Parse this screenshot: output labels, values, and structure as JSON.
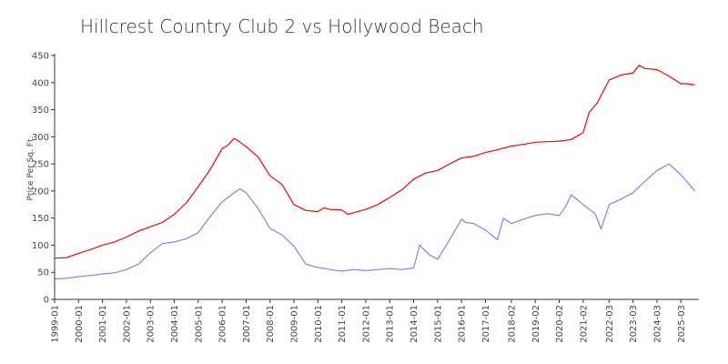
{
  "chart_data": {
    "type": "line",
    "title": "Hillcrest Country Club 2 vs Hollywood Beach",
    "xlabel": "",
    "ylabel": "Price Per Sq. Ft.",
    "ylim": [
      0,
      450
    ],
    "yticks": [
      0,
      50,
      100,
      150,
      200,
      250,
      300,
      350,
      400,
      450
    ],
    "xlim": [
      "1999-01",
      "2025-12"
    ],
    "xticks": [
      "1999-01",
      "2000-01",
      "2001-01",
      "2002-01",
      "2003-01",
      "2004-01",
      "2005-01",
      "2006-01",
      "2007-01",
      "2008-01",
      "2009-01",
      "2010-01",
      "2011-01",
      "2012-01",
      "2013-01",
      "2014-01",
      "2015-01",
      "2016-01",
      "2017-01",
      "2018-02",
      "2019-02",
      "2020-02",
      "2021-02",
      "2022-03",
      "2023-03",
      "2024-03",
      "2025-03"
    ],
    "grid": false,
    "legend": "none",
    "series": [
      {
        "color": "#ff0000",
        "points": [
          [
            "1999-01",
            76
          ],
          [
            "1999-07",
            77
          ],
          [
            "2000-01",
            85
          ],
          [
            "2000-07",
            92
          ],
          [
            "2001-01",
            100
          ],
          [
            "2001-07",
            106
          ],
          [
            "2002-01",
            115
          ],
          [
            "2002-07",
            126
          ],
          [
            "2003-01",
            134
          ],
          [
            "2003-07",
            142
          ],
          [
            "2004-01",
            157
          ],
          [
            "2004-07",
            178
          ],
          [
            "2005-01",
            208
          ],
          [
            "2005-07",
            240
          ],
          [
            "2006-01",
            278
          ],
          [
            "2006-04",
            285
          ],
          [
            "2006-07",
            297
          ],
          [
            "2006-10",
            290
          ],
          [
            "2007-01",
            282
          ],
          [
            "2007-07",
            263
          ],
          [
            "2008-01",
            228
          ],
          [
            "2008-07",
            212
          ],
          [
            "2009-01",
            175
          ],
          [
            "2009-07",
            164
          ],
          [
            "2010-01",
            162
          ],
          [
            "2010-04",
            169
          ],
          [
            "2010-07",
            166
          ],
          [
            "2011-01",
            165
          ],
          [
            "2011-04",
            157
          ],
          [
            "2011-07",
            160
          ],
          [
            "2012-01",
            166
          ],
          [
            "2012-07",
            175
          ],
          [
            "2013-01",
            188
          ],
          [
            "2013-07",
            202
          ],
          [
            "2014-01",
            222
          ],
          [
            "2014-07",
            233
          ],
          [
            "2015-01",
            238
          ],
          [
            "2015-07",
            250
          ],
          [
            "2016-01",
            261
          ],
          [
            "2016-07",
            264
          ],
          [
            "2017-01",
            271
          ],
          [
            "2017-07",
            276
          ],
          [
            "2018-02",
            283
          ],
          [
            "2018-08",
            286
          ],
          [
            "2019-02",
            290
          ],
          [
            "2019-08",
            291
          ],
          [
            "2020-02",
            292
          ],
          [
            "2020-08",
            295
          ],
          [
            "2021-02",
            308
          ],
          [
            "2021-05",
            345
          ],
          [
            "2021-09",
            362
          ],
          [
            "2022-03",
            405
          ],
          [
            "2022-09",
            414
          ],
          [
            "2023-03",
            418
          ],
          [
            "2023-06",
            432
          ],
          [
            "2023-09",
            426
          ],
          [
            "2024-03",
            424
          ],
          [
            "2024-09",
            412
          ],
          [
            "2025-03",
            398
          ],
          [
            "2025-06",
            398
          ],
          [
            "2025-10",
            396
          ]
        ]
      },
      {
        "color": "#8080ff",
        "points": [
          [
            "1999-01",
            38
          ],
          [
            "1999-07",
            39
          ],
          [
            "2000-01",
            42
          ],
          [
            "2000-07",
            44
          ],
          [
            "2001-01",
            47
          ],
          [
            "2001-07",
            49
          ],
          [
            "2002-01",
            55
          ],
          [
            "2002-07",
            65
          ],
          [
            "2003-01",
            86
          ],
          [
            "2003-07",
            103
          ],
          [
            "2004-01",
            106
          ],
          [
            "2004-07",
            112
          ],
          [
            "2005-01",
            123
          ],
          [
            "2005-07",
            153
          ],
          [
            "2006-01",
            180
          ],
          [
            "2006-07",
            197
          ],
          [
            "2006-10",
            204
          ],
          [
            "2007-01",
            197
          ],
          [
            "2007-07",
            168
          ],
          [
            "2008-01",
            131
          ],
          [
            "2008-07",
            119
          ],
          [
            "2009-01",
            98
          ],
          [
            "2009-07",
            65
          ],
          [
            "2010-01",
            59
          ],
          [
            "2010-07",
            55
          ],
          [
            "2011-01",
            52
          ],
          [
            "2011-07",
            55
          ],
          [
            "2012-01",
            53
          ],
          [
            "2012-07",
            55
          ],
          [
            "2013-01",
            57
          ],
          [
            "2013-07",
            55
          ],
          [
            "2014-01",
            58
          ],
          [
            "2014-04",
            100
          ],
          [
            "2014-09",
            82
          ],
          [
            "2015-01",
            74
          ],
          [
            "2015-07",
            110
          ],
          [
            "2016-01",
            148
          ],
          [
            "2016-03",
            142
          ],
          [
            "2016-07",
            140
          ],
          [
            "2017-01",
            128
          ],
          [
            "2017-07",
            110
          ],
          [
            "2017-10",
            150
          ],
          [
            "2018-02",
            140
          ],
          [
            "2018-08",
            148
          ],
          [
            "2019-02",
            155
          ],
          [
            "2019-08",
            158
          ],
          [
            "2020-02",
            155
          ],
          [
            "2020-05",
            170
          ],
          [
            "2020-08",
            193
          ],
          [
            "2021-02",
            175
          ],
          [
            "2021-08",
            158
          ],
          [
            "2021-11",
            130
          ],
          [
            "2022-03",
            175
          ],
          [
            "2022-09",
            185
          ],
          [
            "2023-03",
            197
          ],
          [
            "2023-09",
            218
          ],
          [
            "2024-03",
            238
          ],
          [
            "2024-09",
            250
          ],
          [
            "2025-03",
            230
          ],
          [
            "2025-10",
            200
          ]
        ]
      }
    ]
  }
}
